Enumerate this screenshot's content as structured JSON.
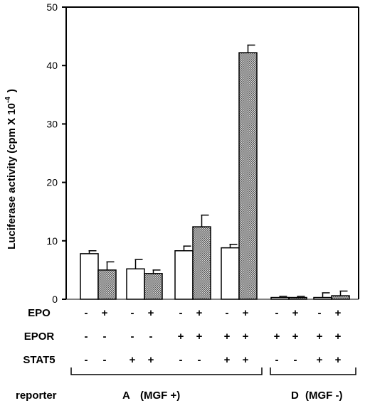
{
  "chart_data": {
    "type": "bar",
    "ylabel": "Luciferase activity  (cpm X 10",
    "ylabel_exponent": "-4",
    "ylabel_close": ")",
    "ylim": [
      0,
      50
    ],
    "yticks": [
      "0",
      "10",
      "20",
      "30",
      "40",
      "50"
    ],
    "grid": false,
    "groups": [
      {
        "bars": [
          {
            "value": 7.8,
            "error": 0.5,
            "fill": "white"
          },
          {
            "value": 5.0,
            "error": 1.4,
            "fill": "hatched"
          }
        ]
      },
      {
        "bars": [
          {
            "value": 5.2,
            "error": 1.6,
            "fill": "white"
          },
          {
            "value": 4.4,
            "error": 0.6,
            "fill": "hatched"
          }
        ]
      },
      {
        "bars": [
          {
            "value": 8.3,
            "error": 0.8,
            "fill": "white"
          },
          {
            "value": 12.4,
            "error": 2.0,
            "fill": "hatched"
          }
        ]
      },
      {
        "bars": [
          {
            "value": 8.8,
            "error": 0.6,
            "fill": "white"
          },
          {
            "value": 42.2,
            "error": 1.3,
            "fill": "hatched"
          }
        ]
      },
      {
        "bars": [
          {
            "value": 0.3,
            "error": 0.2,
            "fill": "white"
          },
          {
            "value": 0.3,
            "error": 0.2,
            "fill": "hatched"
          }
        ]
      },
      {
        "bars": [
          {
            "value": 0.3,
            "error": 0.8,
            "fill": "white"
          },
          {
            "value": 0.6,
            "error": 0.8,
            "fill": "hatched"
          }
        ]
      }
    ],
    "conditions": [
      {
        "label": "EPO",
        "signs": [
          "-",
          "+",
          "-",
          "+",
          "-",
          "+",
          "-",
          "+",
          "-",
          "+",
          "-",
          "+"
        ]
      },
      {
        "label": "EPOR",
        "signs": [
          "-",
          "-",
          "-",
          "-",
          "+",
          "+",
          "+",
          "+",
          "+",
          "+",
          "+",
          "+"
        ]
      },
      {
        "label": "STAT5",
        "signs": [
          "-",
          "-",
          "+",
          "+",
          "-",
          "-",
          "+",
          "+",
          "-",
          "-",
          "+",
          "+"
        ]
      }
    ],
    "reporter_label": "reporter",
    "reporters": [
      {
        "letter": "A",
        "desc": "(MGF +)"
      },
      {
        "letter": "D",
        "desc": "(MGF -)"
      }
    ],
    "colors": {
      "ink": "#000000",
      "open_fill": "#ffffff",
      "hatched_fill": "#8c8c8c"
    }
  }
}
